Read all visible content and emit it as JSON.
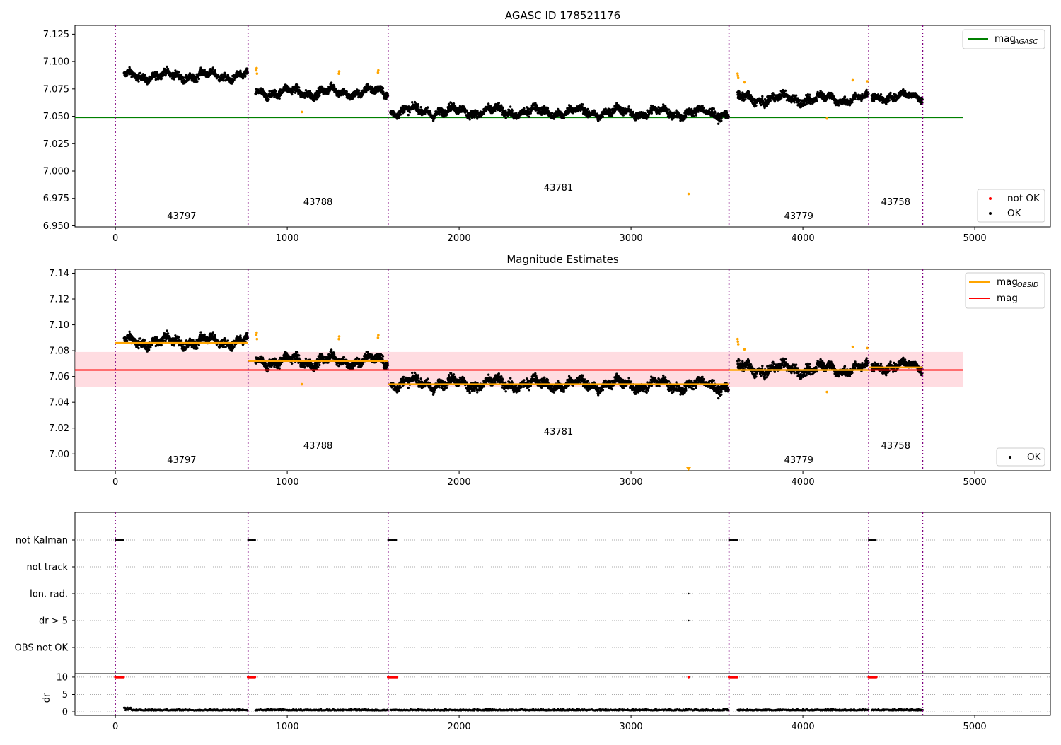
{
  "chart_data": [
    {
      "type": "scatter",
      "title": "AGASC ID 178521176",
      "xlim": [
        -235,
        5440
      ],
      "ylim": [
        6.949,
        7.133
      ],
      "x_ticks": [
        "0",
        "1000",
        "2000",
        "3000",
        "4000",
        "5000"
      ],
      "y_ticks": [
        "6.950",
        "6.975",
        "7.000",
        "7.025",
        "7.050",
        "7.075",
        "7.100",
        "7.125"
      ],
      "obsid_boundaries": [
        0,
        772,
        1587,
        3570,
        4383,
        4697
      ],
      "obsid_labels": [
        {
          "text": "43797",
          "x": 386,
          "y": 6.956
        },
        {
          "text": "43788",
          "x": 1179,
          "y": 6.969
        },
        {
          "text": "43781",
          "x": 2578,
          "y": 6.982
        },
        {
          "text": "43779",
          "x": 3976,
          "y": 6.956
        },
        {
          "text": "43758",
          "x": 4540,
          "y": 6.969
        }
      ],
      "reference_lines": [
        {
          "name": "mag",
          "subscript": "AGASC",
          "y": 7.049,
          "x_range": [
            -235,
            4930
          ],
          "color": "#008000"
        }
      ],
      "segments": [
        {
          "x_range": [
            50,
            772
          ],
          "mean": 7.087,
          "std": 0.0042,
          "drift": 0.0
        },
        {
          "x_range": [
            815,
            1587
          ],
          "mean": 7.072,
          "std": 0.0045,
          "drift": 0.0
        },
        {
          "x_range": [
            1600,
            3570
          ],
          "mean": 7.054,
          "std": 0.0045,
          "drift": -0.002
        },
        {
          "x_range": [
            3620,
            4383
          ],
          "mean": 7.066,
          "std": 0.0045,
          "drift": 0.0
        },
        {
          "x_range": [
            4400,
            4697
          ],
          "mean": 7.068,
          "std": 0.004,
          "drift": 0.0
        }
      ],
      "outliers_not_ok_color": "#ffa500",
      "outliers": [
        [
          820,
          7.092
        ],
        [
          822,
          7.094
        ],
        [
          824,
          7.089
        ],
        [
          1085,
          7.054
        ],
        [
          1300,
          7.089
        ],
        [
          1302,
          7.091
        ],
        [
          1528,
          7.09
        ],
        [
          1530,
          7.092
        ],
        [
          3335,
          6.979
        ],
        [
          3620,
          7.089
        ],
        [
          3622,
          7.087
        ],
        [
          3624,
          7.085
        ],
        [
          3660,
          7.081
        ],
        [
          4140,
          7.048
        ],
        [
          4290,
          7.083
        ],
        [
          4375,
          7.082
        ]
      ],
      "legends": [
        {
          "position": "upper right",
          "entries": [
            {
              "label": "mag",
              "subscript": "AGASC",
              "color": "#008000",
              "marker": "line"
            }
          ]
        },
        {
          "position": "lower right",
          "entries": [
            {
              "label": "not OK",
              "color": "#ff0000",
              "marker": "dot"
            },
            {
              "label": "OK",
              "color": "#000000",
              "marker": "dot"
            }
          ]
        }
      ],
      "series": [
        {
          "name": "OK",
          "color": "#000000"
        },
        {
          "name": "not OK",
          "color": "#ff0000"
        }
      ]
    },
    {
      "type": "scatter",
      "title": "Magnitude Estimates",
      "xlim": [
        -235,
        5440
      ],
      "ylim": [
        6.987,
        7.143
      ],
      "x_ticks": [
        "0",
        "1000",
        "2000",
        "3000",
        "4000",
        "5000"
      ],
      "y_ticks": [
        "7.00",
        "7.02",
        "7.04",
        "7.06",
        "7.08",
        "7.10",
        "7.12",
        "7.14"
      ],
      "obsid_boundaries": [
        0,
        772,
        1587,
        3570,
        4383,
        4697
      ],
      "obsid_labels": [
        {
          "text": "43797",
          "x": 386,
          "y": 6.993
        },
        {
          "text": "43788",
          "x": 1179,
          "y": 7.004
        },
        {
          "text": "43781",
          "x": 2578,
          "y": 7.015
        },
        {
          "text": "43779",
          "x": 3976,
          "y": 6.993
        },
        {
          "text": "43758",
          "x": 4540,
          "y": 7.004
        }
      ],
      "mag": {
        "name": "mag",
        "value": 7.065,
        "band": [
          7.052,
          7.079
        ],
        "x_range": [
          -235,
          4930
        ],
        "color": "#ff0000"
      },
      "mag_obsid": [
        {
          "x_range": [
            0,
            772
          ],
          "value": 7.086
        },
        {
          "x_range": [
            772,
            1587
          ],
          "value": 7.072
        },
        {
          "x_range": [
            1587,
            3570
          ],
          "value": 7.054
        },
        {
          "x_range": [
            3570,
            4383
          ],
          "value": 7.065
        },
        {
          "x_range": [
            4383,
            4697
          ],
          "value": 7.067
        }
      ],
      "mag_obsid_color": "#ffa500",
      "down_marker": {
        "x": 3335,
        "color": "#ffa500"
      },
      "legends": [
        {
          "position": "upper right",
          "entries": [
            {
              "label": "mag",
              "subscript": "OBSID",
              "color": "#ffa500",
              "marker": "line"
            },
            {
              "label": "mag",
              "color": "#ff0000",
              "marker": "line"
            }
          ]
        },
        {
          "position": "lower right",
          "entries": [
            {
              "label": "OK",
              "color": "#000000",
              "marker": "dot"
            }
          ]
        }
      ]
    },
    {
      "type": "scatter",
      "title": "",
      "xlim": [
        -235,
        5440
      ],
      "x_ticks": [
        "0",
        "1000",
        "2000",
        "3000",
        "4000",
        "5000"
      ],
      "flag_rows": [
        "not Kalman",
        "not track",
        "Ion. rad.",
        "dr > 5",
        "OBS not OK"
      ],
      "flag_points": [
        {
          "row": "not Kalman",
          "x_ranges": [
            [
              0,
              50
            ],
            [
              772,
              815
            ],
            [
              1587,
              1640
            ],
            [
              3570,
              3620
            ],
            [
              4383,
              4430
            ]
          ]
        },
        {
          "row": "Ion. rad.",
          "x": [
            3335
          ]
        },
        {
          "row": "dr > 5",
          "x": [
            3335
          ]
        }
      ],
      "dr_panel": {
        "ylabel": "dr",
        "y_ticks": [
          "0",
          "5",
          "10"
        ],
        "ylim": [
          -1,
          11
        ],
        "clipped_value": 10,
        "clipped_x_ranges": [
          [
            0,
            50
          ],
          [
            772,
            815
          ],
          [
            1587,
            1640
          ],
          [
            3570,
            3620
          ],
          [
            4383,
            4430
          ]
        ],
        "clipped_single": [
          3335
        ],
        "clipped_color": "#ff0000",
        "typical_dr": 0.4
      }
    }
  ]
}
